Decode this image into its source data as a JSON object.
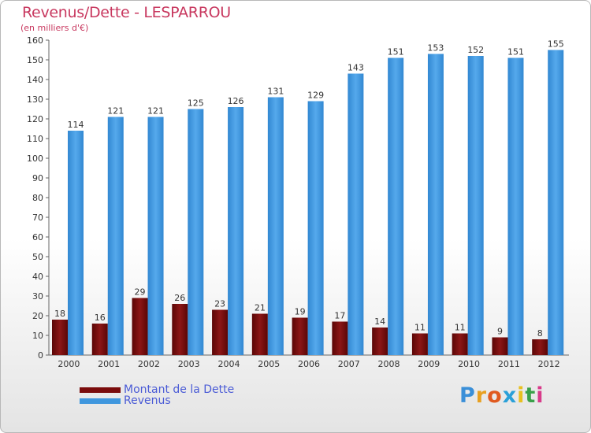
{
  "title": "Revenus/Dette - LESPARROU",
  "subtitle": "(en milliers d'€)",
  "logo": {
    "letters": [
      "P",
      "r",
      "o",
      "x",
      "i",
      "t",
      "i"
    ],
    "colors": [
      "#3a8fd8",
      "#e8a020",
      "#e05a20",
      "#2aa0d8",
      "#e8c020",
      "#3aa04a",
      "#d83a8a"
    ]
  },
  "colors": {
    "dette": "#7a0c0c",
    "revenus": "#3f97de"
  },
  "chart_data": {
    "type": "bar",
    "title": "Revenus/Dette - LESPARROU",
    "ylabel": "(en milliers d'€)",
    "categories": [
      "2000",
      "2001",
      "2002",
      "2003",
      "2004",
      "2005",
      "2006",
      "2007",
      "2008",
      "2009",
      "2010",
      "2011",
      "2012"
    ],
    "series": [
      {
        "name": "Montant de la Dette",
        "values": [
          18,
          16,
          29,
          26,
          23,
          21,
          19,
          17,
          14,
          11,
          11,
          9,
          8
        ]
      },
      {
        "name": "Revenus",
        "values": [
          114,
          121,
          121,
          125,
          126,
          131,
          129,
          143,
          151,
          153,
          152,
          151,
          155
        ]
      }
    ],
    "ylim": [
      0,
      160
    ],
    "yticks": [
      0,
      10,
      20,
      30,
      40,
      50,
      60,
      70,
      80,
      90,
      100,
      110,
      120,
      130,
      140,
      150,
      160
    ],
    "legend": "bottom-left"
  }
}
